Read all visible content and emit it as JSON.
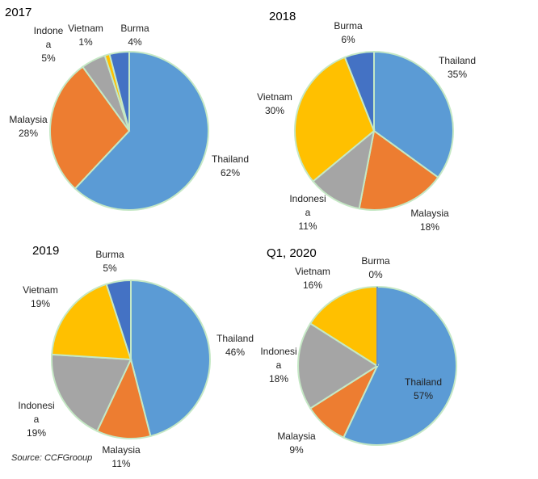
{
  "colors": {
    "Thailand": "#5B9BD5",
    "Malaysia": "#ED7D31",
    "Indonesia": "#A5A5A5",
    "Vietnam": "#FFC000",
    "Burma": "#4472C4",
    "border": "#C5E8C5"
  },
  "source": "Source: CCFGrooup",
  "chart_data": [
    {
      "type": "pie",
      "title": "2017",
      "slices": [
        {
          "name": "Thailand",
          "value": 62,
          "label_lines": [
            "Thailand",
            "62%"
          ]
        },
        {
          "name": "Malaysia",
          "value": 28,
          "label_lines": [
            "Malaysia",
            "28%"
          ]
        },
        {
          "name": "Indonesia",
          "value": 5,
          "label_lines": [
            "Indone",
            "a",
            "5%"
          ]
        },
        {
          "name": "Vietnam",
          "value": 1,
          "label_lines": [
            "Vietnam",
            "1%"
          ]
        },
        {
          "name": "Burma",
          "value": 4,
          "label_lines": [
            "Burma",
            "4%"
          ]
        }
      ]
    },
    {
      "type": "pie",
      "title": "2018",
      "slices": [
        {
          "name": "Thailand",
          "value": 35,
          "label_lines": [
            "Thailand",
            "35%"
          ]
        },
        {
          "name": "Malaysia",
          "value": 18,
          "label_lines": [
            "Malaysia",
            "18%"
          ]
        },
        {
          "name": "Indonesia",
          "value": 11,
          "label_lines": [
            "Indonesi",
            "a",
            "11%"
          ]
        },
        {
          "name": "Vietnam",
          "value": 30,
          "label_lines": [
            "Vietnam",
            "30%"
          ]
        },
        {
          "name": "Burma",
          "value": 6,
          "label_lines": [
            "Burma",
            "6%"
          ]
        }
      ]
    },
    {
      "type": "pie",
      "title": "2019",
      "slices": [
        {
          "name": "Thailand",
          "value": 46,
          "label_lines": [
            "Thailand",
            "46%"
          ]
        },
        {
          "name": "Malaysia",
          "value": 11,
          "label_lines": [
            "Malaysia",
            "11%"
          ]
        },
        {
          "name": "Indonesia",
          "value": 19,
          "label_lines": [
            "Indonesi",
            "a",
            "19%"
          ]
        },
        {
          "name": "Vietnam",
          "value": 19,
          "label_lines": [
            "Vietnam",
            "19%"
          ]
        },
        {
          "name": "Burma",
          "value": 5,
          "label_lines": [
            "Burma",
            "5%"
          ]
        }
      ]
    },
    {
      "type": "pie",
      "title": "Q1, 2020",
      "slices": [
        {
          "name": "Thailand",
          "value": 57,
          "label_lines": [
            "Thailand",
            "57%"
          ]
        },
        {
          "name": "Malaysia",
          "value": 9,
          "label_lines": [
            "Malaysia",
            "9%"
          ]
        },
        {
          "name": "Indonesia",
          "value": 18,
          "label_lines": [
            "Indonesi",
            "a",
            "18%"
          ]
        },
        {
          "name": "Vietnam",
          "value": 16,
          "label_lines": [
            "Vietnam",
            "16%"
          ]
        },
        {
          "name": "Burma",
          "value": 0,
          "label_lines": [
            "Burma",
            "0%"
          ]
        }
      ]
    }
  ]
}
